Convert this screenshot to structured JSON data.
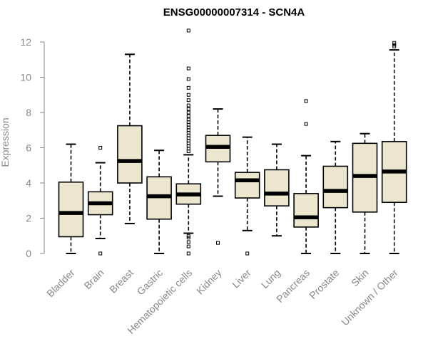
{
  "chart_data": {
    "type": "boxplot",
    "title": "ENSG00000007314 - SCN4A",
    "xlabel": "",
    "ylabel": "Expression",
    "ylim": [
      0,
      12
    ],
    "yticks": [
      0,
      2,
      4,
      6,
      8,
      10,
      12
    ],
    "grid": false,
    "box_fill": "#ede6cf",
    "categories": [
      "Bladder",
      "Brain",
      "Breast",
      "Gastric",
      "Hematopoietic cells",
      "Kidney",
      "Liver",
      "Lung",
      "Pancreas",
      "Prostate",
      "Skin",
      "Unknown / Other"
    ],
    "boxes": [
      {
        "whisker_low": 0.0,
        "q1": 0.95,
        "median": 2.3,
        "q3": 4.05,
        "whisker_high": 6.2,
        "outliers": []
      },
      {
        "whisker_low": 0.85,
        "q1": 2.2,
        "median": 2.85,
        "q3": 3.5,
        "whisker_high": 5.15,
        "outliers": [
          6.0,
          0.0
        ]
      },
      {
        "whisker_low": 1.7,
        "q1": 4.0,
        "median": 5.25,
        "q3": 7.25,
        "whisker_high": 11.3,
        "outliers": []
      },
      {
        "whisker_low": 0.0,
        "q1": 1.95,
        "median": 3.25,
        "q3": 4.35,
        "whisker_high": 5.85,
        "outliers": []
      },
      {
        "whisker_low": 1.15,
        "q1": 2.8,
        "median": 3.35,
        "q3": 3.95,
        "whisker_high": 5.6,
        "outliers": [
          12.65,
          10.5,
          9.9,
          9.4,
          9.0,
          8.7,
          8.4,
          8.2,
          8.0,
          7.8,
          7.6,
          7.45,
          7.3,
          7.15,
          7.0,
          6.85,
          6.7,
          6.55,
          6.4,
          6.25,
          6.1,
          5.95,
          5.8,
          1.0,
          0.9,
          0.65,
          0.4,
          0.0
        ]
      },
      {
        "whisker_low": 3.25,
        "q1": 5.2,
        "median": 6.05,
        "q3": 6.7,
        "whisker_high": 8.2,
        "outliers": [
          0.6
        ]
      },
      {
        "whisker_low": 1.3,
        "q1": 3.15,
        "median": 4.15,
        "q3": 4.6,
        "whisker_high": 6.6,
        "outliers": [
          0.0
        ]
      },
      {
        "whisker_low": 1.0,
        "q1": 2.7,
        "median": 3.4,
        "q3": 4.75,
        "whisker_high": 6.2,
        "outliers": []
      },
      {
        "whisker_low": 0.0,
        "q1": 1.5,
        "median": 2.05,
        "q3": 3.4,
        "whisker_high": 5.55,
        "outliers": [
          8.65,
          7.35
        ]
      },
      {
        "whisker_low": 0.0,
        "q1": 2.6,
        "median": 3.55,
        "q3": 4.95,
        "whisker_high": 6.35,
        "outliers": []
      },
      {
        "whisker_low": 0.0,
        "q1": 2.35,
        "median": 4.4,
        "q3": 6.25,
        "whisker_high": 6.8,
        "outliers": []
      },
      {
        "whisker_low": 0.0,
        "q1": 2.9,
        "median": 4.65,
        "q3": 6.35,
        "whisker_high": 11.55,
        "outliers": [
          11.95,
          11.85,
          11.75
        ]
      }
    ]
  }
}
